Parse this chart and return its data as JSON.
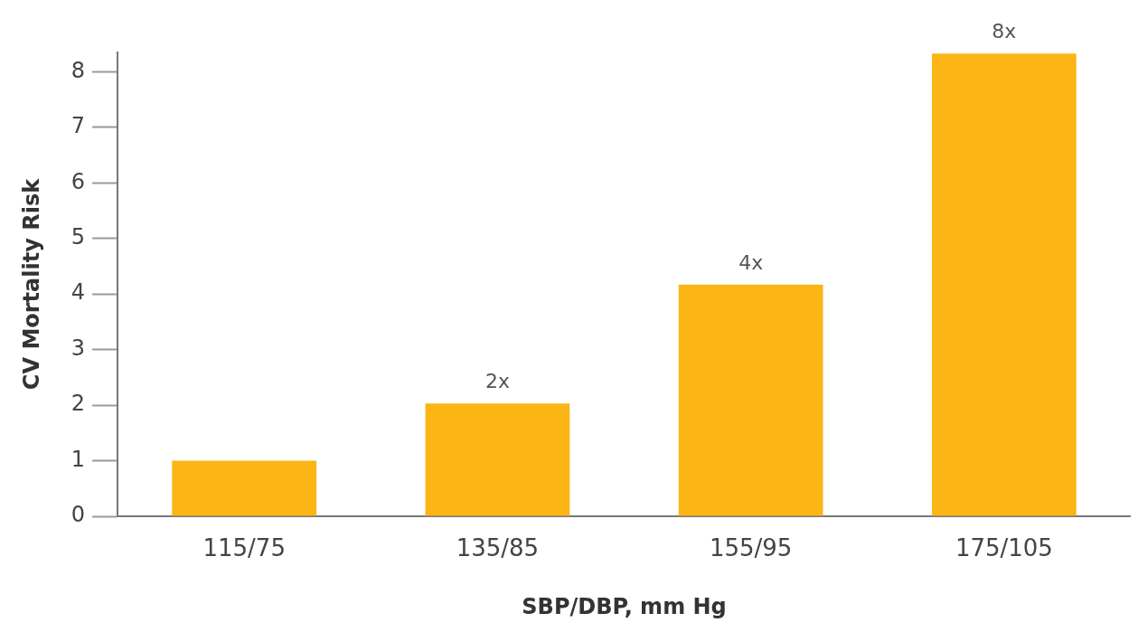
{
  "chart_data": {
    "type": "bar",
    "xlabel": "SBP/DBP, mm Hg",
    "ylabel": "CV Mortality Risk",
    "categories": [
      "115/75",
      "135/85",
      "155/95",
      "175/105"
    ],
    "values": [
      1,
      2.03,
      4.17,
      8.33
    ],
    "value_labels": [
      null,
      "2x",
      "4x",
      "8x"
    ],
    "color": "#fbb515",
    "ylim": [
      0,
      8.35
    ],
    "yticks": [
      0,
      1,
      2,
      3,
      4,
      5,
      6,
      7,
      8
    ],
    "grid": false,
    "legend": false
  }
}
